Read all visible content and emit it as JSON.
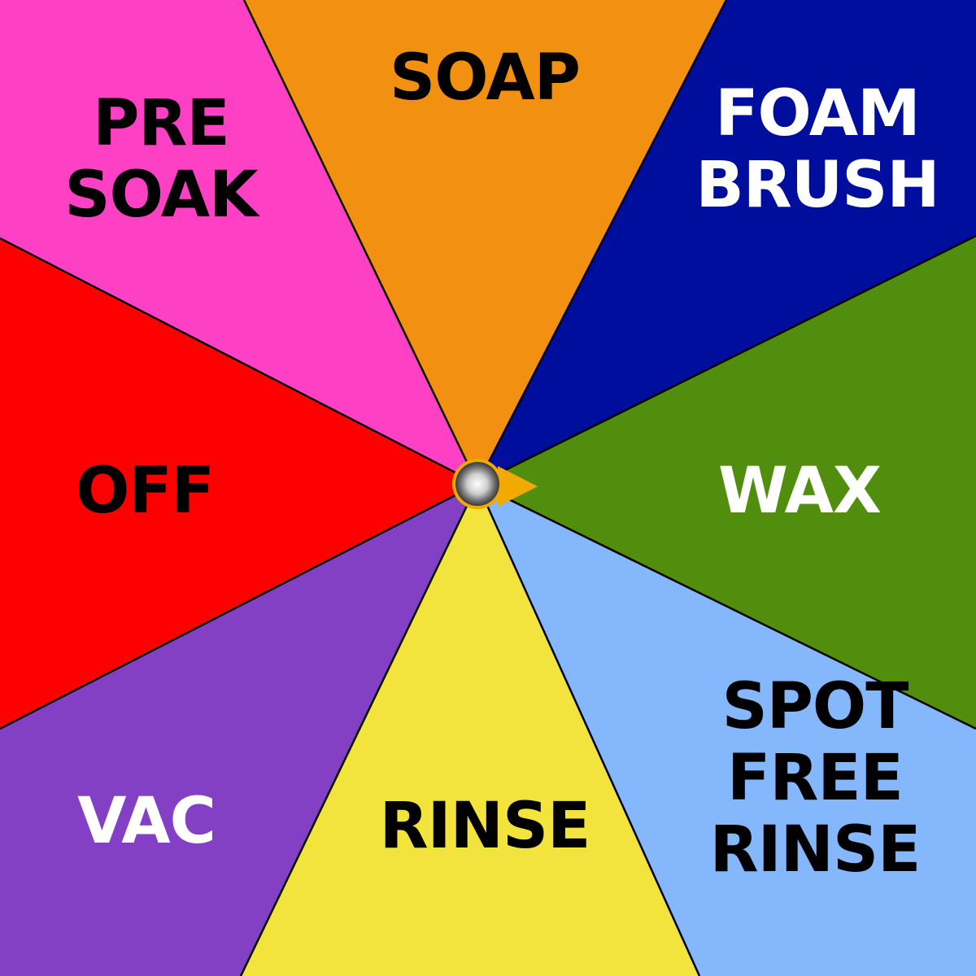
{
  "selector": {
    "selected": "wax",
    "segments": [
      {
        "id": "soap",
        "lines": [
          "SOAP"
        ],
        "fill": "#f29111",
        "text_color": "#000000"
      },
      {
        "id": "foam-brush",
        "lines": [
          "FOAM",
          "BRUSH"
        ],
        "fill": "#000e9e",
        "text_color": "#ffffff"
      },
      {
        "id": "wax",
        "lines": [
          "WAX"
        ],
        "fill": "#518e0e",
        "text_color": "#ffffff"
      },
      {
        "id": "spot-free-rinse",
        "lines": [
          "SPOT",
          "FREE",
          "RINSE"
        ],
        "fill": "#84b7fc",
        "text_color": "#000000"
      },
      {
        "id": "rinse",
        "lines": [
          "RINSE"
        ],
        "fill": "#f2e33d",
        "text_color": "#000000"
      },
      {
        "id": "vac",
        "lines": [
          "VAC"
        ],
        "fill": "#8440c4",
        "text_color": "#ffffff"
      },
      {
        "id": "off",
        "lines": [
          "OFF"
        ],
        "fill": "#fe0000",
        "text_color": "#000000"
      },
      {
        "id": "pre-soak",
        "lines": [
          "PRE",
          "SOAK"
        ],
        "fill": "#fe40c4",
        "text_color": "#000000"
      }
    ],
    "knob": {
      "icon": "knob-icon",
      "pointer_icon": "pointer-arrow-icon",
      "rim_color": "#f2a900",
      "pointer_color": "#f2a900"
    },
    "divider_color": "#000000"
  }
}
